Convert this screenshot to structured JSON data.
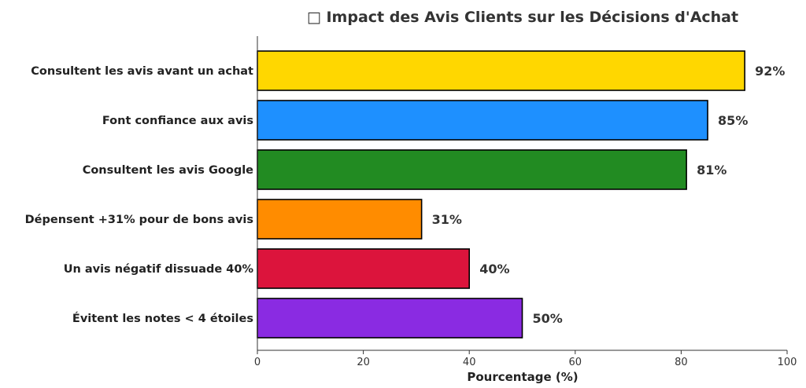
{
  "chart_data": {
    "type": "bar",
    "orientation": "horizontal",
    "title": "□ Impact des Avis Clients sur les Décisions d'Achat",
    "xlabel": "Pourcentage (%)",
    "ylabel": "",
    "xlim": [
      0,
      100
    ],
    "xticks": [
      0,
      20,
      40,
      60,
      80,
      100
    ],
    "grid": false,
    "categories": [
      "Consultent les avis avant un achat",
      "Font confiance aux avis",
      "Consultent les avis Google",
      "Dépensent +31% pour de bons avis",
      "Un avis négatif dissuade 40%",
      "Évitent les notes < 4 étoiles"
    ],
    "values": [
      92,
      85,
      81,
      31,
      40,
      50
    ],
    "data_labels": [
      "92%",
      "85%",
      "81%",
      "31%",
      "40%",
      "50%"
    ],
    "colors": [
      "#FFD700",
      "#1E90FF",
      "#228B22",
      "#FF8C00",
      "#DC143C",
      "#8A2BE2"
    ]
  }
}
